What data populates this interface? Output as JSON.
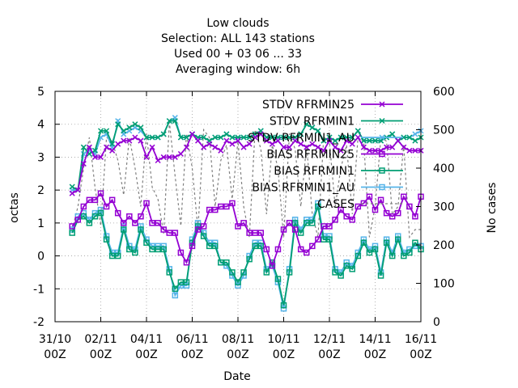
{
  "chart_data": {
    "type": "line",
    "title_lines": [
      "Low clouds",
      "Selection: ALL    143 stations",
      "Used  00 + 03 06 ... 33",
      "Averaging window:  6h"
    ],
    "xlabel": "Date",
    "ylabel": "octas",
    "y2label": "No cases",
    "x_range_hours": [
      0,
      384
    ],
    "ylim": [
      -2,
      5
    ],
    "y2lim": [
      0,
      600
    ],
    "x_ticks": [
      {
        "h": 0,
        "l1": "31/10",
        "l2": "00Z"
      },
      {
        "h": 48,
        "l1": "02/11",
        "l2": "00Z"
      },
      {
        "h": 96,
        "l1": "04/11",
        "l2": "00Z"
      },
      {
        "h": 144,
        "l1": "06/11",
        "l2": "00Z"
      },
      {
        "h": 192,
        "l1": "08/11",
        "l2": "00Z"
      },
      {
        "h": 240,
        "l1": "10/11",
        "l2": "00Z"
      },
      {
        "h": 288,
        "l1": "12/11",
        "l2": "00Z"
      },
      {
        "h": 336,
        "l1": "14/11",
        "l2": "00Z"
      },
      {
        "h": 384,
        "l1": "16/11",
        "l2": "00Z"
      }
    ],
    "y_ticks": [
      "-2",
      "-1",
      "0",
      "1",
      "2",
      "3",
      "4",
      "5"
    ],
    "y2_ticks": [
      "0",
      "100",
      "200",
      "300",
      "400",
      "500",
      "600"
    ],
    "grid": true,
    "legend_position": "top-right",
    "series": [
      {
        "name": "STDV RFRMIN25",
        "color": "#9400d3",
        "marker": "x",
        "axis": "y",
        "values": [
          1.9,
          2.0,
          2.8,
          3.3,
          3.0,
          3.0,
          3.3,
          3.2,
          3.4,
          3.5,
          3.5,
          3.6,
          3.5,
          3.0,
          3.3,
          2.9,
          3.0,
          3.0,
          3.0,
          3.1,
          3.3,
          3.7,
          3.5,
          3.3,
          3.4,
          3.3,
          3.2,
          3.5,
          3.4,
          3.5,
          3.3,
          3.4,
          3.6,
          3.7,
          3.5,
          3.4,
          3.5,
          3.3,
          3.3,
          3.5,
          3.4,
          3.3,
          3.4,
          3.3,
          3.2,
          3.5,
          3.3,
          3.2,
          3.5,
          3.4,
          3.6,
          3.3,
          3.2,
          3.2,
          3.2,
          3.3,
          3.3,
          3.5,
          3.3,
          3.2,
          3.2,
          3.2
        ]
      },
      {
        "name": "STDV RFRMIN1",
        "color": "#009e73",
        "marker": "x",
        "axis": "y",
        "values": [
          2.1,
          2.0,
          3.3,
          3.1,
          3.2,
          3.8,
          3.8,
          3.4,
          4.0,
          3.8,
          3.9,
          4.0,
          3.9,
          3.6,
          3.6,
          3.6,
          3.7,
          4.1,
          4.1,
          3.6,
          3.6,
          3.7,
          3.6,
          3.6,
          3.5,
          3.6,
          3.6,
          3.7,
          3.6,
          3.6,
          3.6,
          3.6,
          3.7,
          3.8,
          3.6,
          3.6,
          3.6,
          3.6,
          3.6,
          3.6,
          3.7,
          4.0,
          3.9,
          3.8,
          3.5,
          3.6,
          3.5,
          3.6,
          3.6,
          3.6,
          3.8,
          3.5,
          3.5,
          3.5,
          3.5,
          3.6,
          3.7,
          3.5,
          3.6,
          3.6,
          3.5,
          3.6
        ]
      },
      {
        "name": "STDV RFRMIN1_AU",
        "color": "#56b4e9",
        "marker": "x",
        "axis": "y",
        "values": [
          2.0,
          2.0,
          3.1,
          3.2,
          3.1,
          3.6,
          3.7,
          3.3,
          4.1,
          3.7,
          3.8,
          3.9,
          3.8,
          3.6,
          3.6,
          3.6,
          3.7,
          4.1,
          4.2,
          3.6,
          3.6,
          3.7,
          3.6,
          3.6,
          3.5,
          3.6,
          3.6,
          3.7,
          3.6,
          3.6,
          3.6,
          3.6,
          3.7,
          3.8,
          3.6,
          3.6,
          3.6,
          3.6,
          3.6,
          3.6,
          3.7,
          4.0,
          3.9,
          3.8,
          3.5,
          3.6,
          3.5,
          3.6,
          3.6,
          3.6,
          3.8,
          3.5,
          3.5,
          3.5,
          3.5,
          3.6,
          3.7,
          3.5,
          3.6,
          3.6,
          3.7,
          3.8
        ]
      },
      {
        "name": "BIAS RFRMIN25",
        "color": "#9400d3",
        "marker": "square",
        "axis": "y",
        "values": [
          0.9,
          1.1,
          1.5,
          1.7,
          1.7,
          1.9,
          1.5,
          1.7,
          1.3,
          1.0,
          1.2,
          1.0,
          1.2,
          1.6,
          1.0,
          1.0,
          0.8,
          0.7,
          0.7,
          0.1,
          -0.2,
          0.3,
          0.8,
          0.9,
          1.4,
          1.4,
          1.5,
          1.5,
          1.6,
          0.9,
          1.0,
          0.7,
          0.7,
          0.7,
          0.2,
          -0.3,
          0.2,
          0.8,
          1.0,
          0.8,
          0.2,
          0.1,
          0.3,
          0.5,
          0.9,
          0.9,
          1.1,
          1.4,
          1.2,
          1.1,
          1.5,
          1.6,
          1.8,
          1.4,
          1.7,
          1.3,
          1.2,
          1.3,
          1.8,
          1.5,
          1.2,
          1.8
        ]
      },
      {
        "name": "BIAS RFRMIN1",
        "color": "#009e73",
        "marker": "square",
        "axis": "y",
        "values": [
          0.7,
          1.1,
          1.2,
          1.0,
          1.2,
          1.3,
          0.5,
          0.0,
          0.0,
          0.8,
          0.2,
          0.1,
          0.8,
          0.4,
          0.2,
          0.2,
          0.2,
          -0.5,
          -1.0,
          -0.8,
          -0.8,
          0.4,
          0.9,
          0.6,
          0.3,
          0.3,
          -0.2,
          -0.2,
          -0.5,
          -0.8,
          -0.5,
          -0.1,
          0.3,
          0.3,
          -0.5,
          -0.2,
          -0.7,
          -1.5,
          -0.5,
          1.0,
          0.7,
          1.0,
          1.0,
          1.5,
          0.5,
          0.5,
          -0.5,
          -0.6,
          -0.3,
          -0.4,
          0.0,
          0.4,
          0.1,
          0.2,
          -0.6,
          0.4,
          0.0,
          0.5,
          0.0,
          0.1,
          0.4,
          0.2
        ]
      },
      {
        "name": "BIAS RFRMIN1_AU",
        "color": "#56b4e9",
        "marker": "square",
        "axis": "y",
        "values": [
          0.8,
          1.2,
          1.3,
          1.1,
          1.3,
          1.4,
          0.6,
          0.1,
          0.1,
          0.9,
          0.3,
          0.2,
          0.9,
          0.5,
          0.3,
          0.3,
          0.3,
          -0.4,
          -1.2,
          -0.9,
          -0.9,
          0.5,
          1.0,
          0.7,
          0.4,
          0.4,
          -0.2,
          -0.3,
          -0.6,
          -0.9,
          -0.6,
          0.0,
          0.4,
          0.4,
          -0.4,
          -0.3,
          -0.8,
          -1.6,
          -0.4,
          1.1,
          0.8,
          1.1,
          1.1,
          1.6,
          0.6,
          0.6,
          -0.4,
          -0.5,
          -0.2,
          -0.3,
          0.1,
          0.5,
          0.2,
          0.3,
          -0.5,
          0.5,
          0.1,
          0.6,
          0.1,
          0.2,
          0.3,
          0.3
        ]
      },
      {
        "name": "CASES",
        "color": "#808080",
        "marker": "none",
        "dashed": true,
        "axis": "y2",
        "values": [
          240,
          300,
          400,
          480,
          350,
          250,
          480,
          470,
          420,
          330,
          480,
          400,
          300,
          490,
          350,
          320,
          230,
          520,
          380,
          250,
          490,
          400,
          240,
          500,
          480,
          300,
          420,
          460,
          320,
          470,
          300,
          220,
          500,
          450,
          280,
          460,
          400,
          220,
          490,
          450,
          300,
          460,
          280,
          220,
          480,
          470,
          300,
          400,
          460,
          280,
          480,
          470,
          220,
          300,
          480,
          470,
          280,
          300,
          460,
          220,
          240,
          240
        ]
      }
    ]
  }
}
